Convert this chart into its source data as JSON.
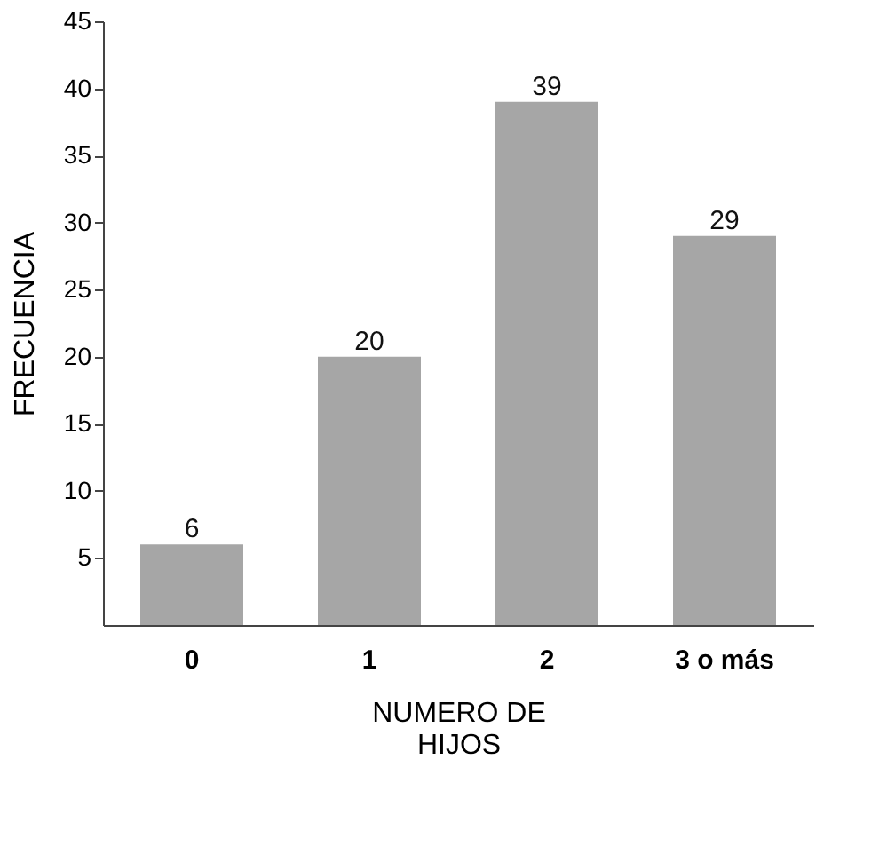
{
  "chart_data": {
    "type": "bar",
    "categories": [
      "0",
      "1",
      "2",
      "3 o más"
    ],
    "values": [
      6,
      20,
      39,
      29
    ],
    "color": "#a6a6a6",
    "xlabel": "NUMERO DE HIJOS",
    "ylabel": "FRECUENCIA",
    "ylim": [
      0,
      45
    ],
    "yticks": [
      5,
      10,
      15,
      20,
      25,
      30,
      35,
      40,
      45
    ],
    "grid": false,
    "data_labels": true
  }
}
